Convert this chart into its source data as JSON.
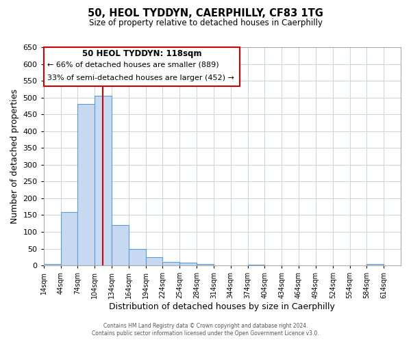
{
  "title": "50, HEOL TYDDYN, CAERPHILLY, CF83 1TG",
  "subtitle": "Size of property relative to detached houses in Caerphilly",
  "xlabel": "Distribution of detached houses by size in Caerphilly",
  "ylabel": "Number of detached properties",
  "bin_edges": [
    14,
    44,
    74,
    104,
    134,
    164,
    194,
    224,
    254,
    284,
    314,
    344,
    374,
    404,
    434,
    464,
    494,
    524,
    554,
    584,
    614
  ],
  "bar_heights": [
    5,
    160,
    480,
    505,
    120,
    50,
    25,
    10,
    8,
    5,
    0,
    0,
    3,
    0,
    0,
    0,
    0,
    0,
    0,
    5
  ],
  "bar_color": "#c6d9f0",
  "bar_edgecolor": "#5b9bd5",
  "property_line_x": 118,
  "property_line_color": "#cc0000",
  "ylim": [
    0,
    650
  ],
  "yticks": [
    0,
    50,
    100,
    150,
    200,
    250,
    300,
    350,
    400,
    450,
    500,
    550,
    600,
    650
  ],
  "annotation_title": "50 HEOL TYDDYN: 118sqm",
  "annotation_line1": "← 66% of detached houses are smaller (889)",
  "annotation_line2": "33% of semi-detached houses are larger (452) →",
  "footer_line1": "Contains HM Land Registry data © Crown copyright and database right 2024.",
  "footer_line2": "Contains public sector information licensed under the Open Government Licence v3.0.",
  "background_color": "#ffffff",
  "grid_color": "#c8d4e0"
}
